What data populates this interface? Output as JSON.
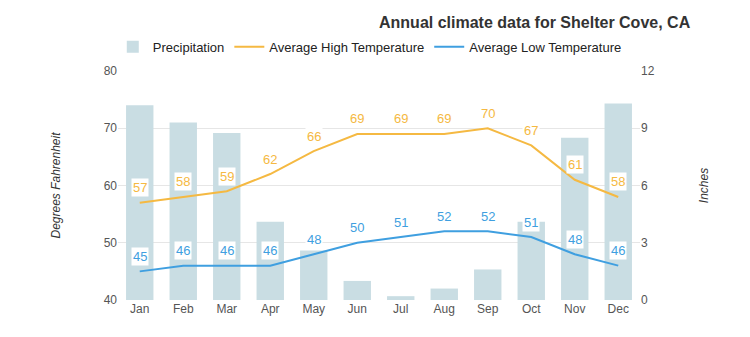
{
  "chart_data": {
    "type": "bar",
    "title": "Annual climate data for Shelter Cove, CA",
    "categories": [
      "Jan",
      "Feb",
      "Mar",
      "Apr",
      "May",
      "Jun",
      "Jul",
      "Aug",
      "Sep",
      "Oct",
      "Nov",
      "Dec"
    ],
    "series": [
      {
        "name": "Precipitation",
        "type": "bar",
        "axis": "y2",
        "color": "#c9dde3",
        "values": [
          10.2,
          9.3,
          8.75,
          4.1,
          2.6,
          1.0,
          0.2,
          0.6,
          1.6,
          4.1,
          8.5,
          10.3
        ]
      },
      {
        "name": "Average High Temperature",
        "type": "line",
        "color": "#f5b942",
        "data_labels": true,
        "values": [
          57,
          58,
          59,
          62,
          66,
          69,
          69,
          69,
          70,
          67,
          61,
          58
        ]
      },
      {
        "name": "Average Low Temperature",
        "type": "line",
        "color": "#3f9fe0",
        "data_labels": true,
        "values": [
          45,
          46,
          46,
          46,
          48,
          50,
          51,
          52,
          52,
          51,
          48,
          46
        ]
      }
    ],
    "y_label": "Degrees Fahrenheit",
    "y2_label": "Inches",
    "ylim": [
      40,
      80
    ],
    "yticks": [
      40,
      50,
      60,
      70,
      80
    ],
    "y2lim": [
      0,
      12
    ],
    "y2ticks": [
      0,
      3,
      6,
      9,
      12
    ],
    "grid": true,
    "legend": "top left"
  }
}
